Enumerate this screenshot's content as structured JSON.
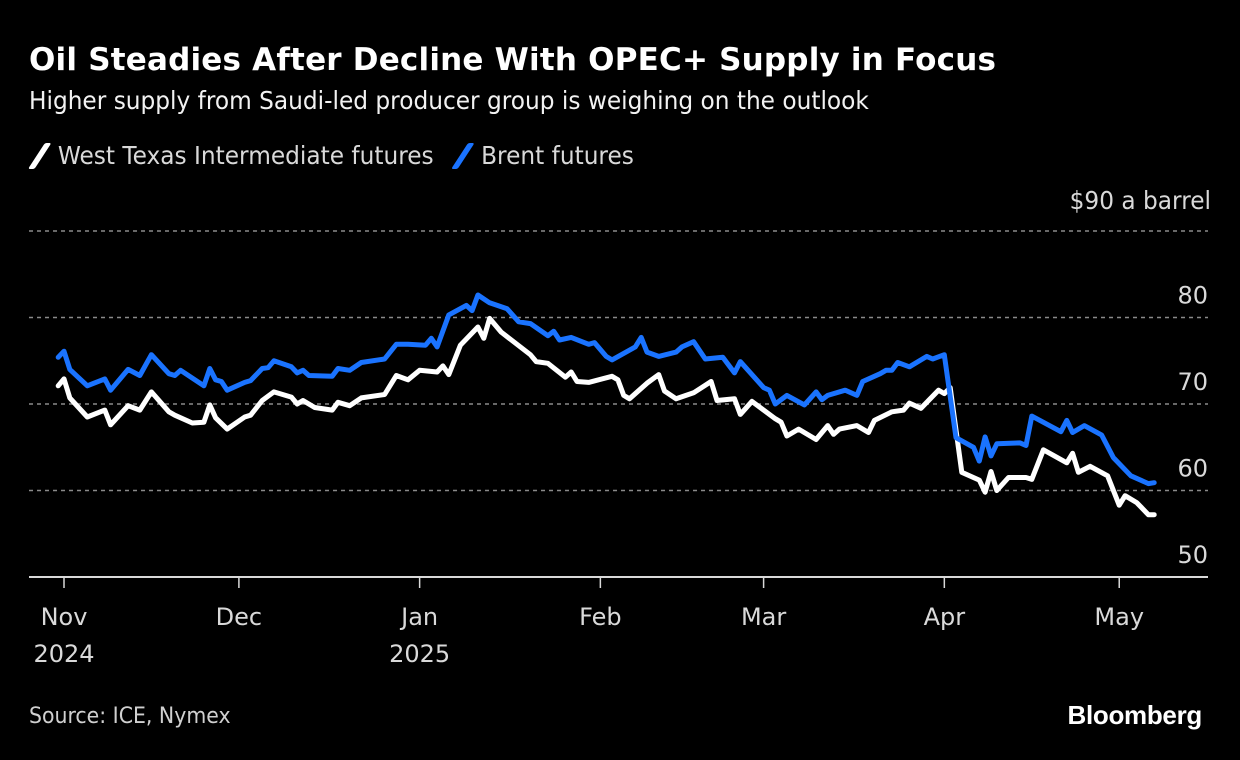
{
  "header": {
    "title": "Oil Steadies After Decline With OPEC+ Supply in Focus",
    "subtitle": "Higher supply from Saudi-led producer group is weighing on the outlook"
  },
  "legend": [
    {
      "label": "West Texas Intermediate futures",
      "color": "#ffffff"
    },
    {
      "label": "Brent futures",
      "color": "#1a73ff"
    }
  ],
  "footer": {
    "source": "Source: ICE, Nymex",
    "brand": "Bloomberg"
  },
  "chart_data": {
    "type": "line",
    "title": "Oil Steadies After Decline With OPEC+ Supply in Focus",
    "subtitle": "Higher supply from Saudi-led producer group is weighing on the outlook",
    "xlabel": "",
    "ylabel": "$ a barrel",
    "unit_label": "$90 a barrel",
    "ylim": [
      50,
      90
    ],
    "yticks": [
      50,
      60,
      70,
      80,
      90
    ],
    "ytick_labels": [
      "50",
      "60",
      "70",
      "80",
      "$90 a barrel"
    ],
    "xlim": [
      "2024-11-01",
      "2025-05-22"
    ],
    "xticks": [
      {
        "date": "2024-11-01",
        "label": "Nov",
        "sublabel": "2024"
      },
      {
        "date": "2024-12-01",
        "label": "Dec",
        "sublabel": ""
      },
      {
        "date": "2025-01-01",
        "label": "Jan",
        "sublabel": "2025"
      },
      {
        "date": "2025-02-01",
        "label": "Feb",
        "sublabel": ""
      },
      {
        "date": "2025-03-01",
        "label": "Mar",
        "sublabel": ""
      },
      {
        "date": "2025-04-01",
        "label": "Apr",
        "sublabel": ""
      },
      {
        "date": "2025-05-01",
        "label": "May",
        "sublabel": ""
      }
    ],
    "grid": "horizontal dotted",
    "legend_position": "top-left",
    "series": [
      {
        "name": "West Texas Intermediate futures",
        "color": "#ffffff",
        "points": [
          [
            "2024-10-31",
            72.1
          ],
          [
            "2024-11-01",
            72.9
          ],
          [
            "2024-11-02",
            70.7
          ],
          [
            "2024-11-05",
            68.5
          ],
          [
            "2024-11-08",
            69.3
          ],
          [
            "2024-11-09",
            67.6
          ],
          [
            "2024-11-12",
            69.8
          ],
          [
            "2024-11-14",
            69.3
          ],
          [
            "2024-11-16",
            71.4
          ],
          [
            "2024-11-19",
            69.1
          ],
          [
            "2024-11-20",
            68.7
          ],
          [
            "2024-11-23",
            67.8
          ],
          [
            "2024-11-25",
            67.9
          ],
          [
            "2024-11-26",
            69.9
          ],
          [
            "2024-11-27",
            68.4
          ],
          [
            "2024-11-29",
            67.1
          ],
          [
            "2024-12-02",
            68.5
          ],
          [
            "2024-12-03",
            68.7
          ],
          [
            "2024-12-05",
            70.4
          ],
          [
            "2024-12-07",
            71.4
          ],
          [
            "2024-12-10",
            70.8
          ],
          [
            "2024-12-11",
            70.0
          ],
          [
            "2024-12-12",
            70.4
          ],
          [
            "2024-12-14",
            69.6
          ],
          [
            "2024-12-17",
            69.3
          ],
          [
            "2024-12-18",
            70.2
          ],
          [
            "2024-12-20",
            69.8
          ],
          [
            "2024-12-22",
            70.7
          ],
          [
            "2024-12-26",
            71.1
          ],
          [
            "2024-12-28",
            73.3
          ],
          [
            "2024-12-30",
            72.8
          ],
          [
            "2025-01-01",
            73.9
          ],
          [
            "2025-01-04",
            73.7
          ],
          [
            "2025-01-05",
            74.4
          ],
          [
            "2025-01-06",
            73.4
          ],
          [
            "2025-01-08",
            76.8
          ],
          [
            "2025-01-11",
            78.9
          ],
          [
            "2025-01-12",
            77.6
          ],
          [
            "2025-01-13",
            79.9
          ],
          [
            "2025-01-15",
            78.3
          ],
          [
            "2025-01-20",
            75.7
          ],
          [
            "2025-01-21",
            74.9
          ],
          [
            "2025-01-23",
            74.7
          ],
          [
            "2025-01-26",
            73.1
          ],
          [
            "2025-01-27",
            73.7
          ],
          [
            "2025-01-28",
            72.6
          ],
          [
            "2025-01-30",
            72.5
          ],
          [
            "2025-02-03",
            73.2
          ],
          [
            "2025-02-04",
            72.8
          ],
          [
            "2025-02-05",
            71.0
          ],
          [
            "2025-02-06",
            70.6
          ],
          [
            "2025-02-09",
            72.4
          ],
          [
            "2025-02-11",
            73.4
          ],
          [
            "2025-02-12",
            71.5
          ],
          [
            "2025-02-14",
            70.6
          ],
          [
            "2025-02-17",
            71.3
          ],
          [
            "2025-02-20",
            72.6
          ],
          [
            "2025-02-21",
            70.4
          ],
          [
            "2025-02-24",
            70.6
          ],
          [
            "2025-02-25",
            68.8
          ],
          [
            "2025-02-27",
            70.3
          ],
          [
            "2025-03-03",
            68.3
          ],
          [
            "2025-03-04",
            67.9
          ],
          [
            "2025-03-05",
            66.3
          ],
          [
            "2025-03-07",
            67.1
          ],
          [
            "2025-03-10",
            65.9
          ],
          [
            "2025-03-12",
            67.5
          ],
          [
            "2025-03-13",
            66.5
          ],
          [
            "2025-03-14",
            67.1
          ],
          [
            "2025-03-17",
            67.5
          ],
          [
            "2025-03-19",
            66.7
          ],
          [
            "2025-03-20",
            68.1
          ],
          [
            "2025-03-23",
            69.1
          ],
          [
            "2025-03-25",
            69.3
          ],
          [
            "2025-03-26",
            70.1
          ],
          [
            "2025-03-28",
            69.5
          ],
          [
            "2025-03-31",
            71.6
          ],
          [
            "2025-04-01",
            71.2
          ],
          [
            "2025-04-02",
            71.9
          ],
          [
            "2025-04-04",
            62.1
          ],
          [
            "2025-04-07",
            61.2
          ],
          [
            "2025-04-08",
            59.8
          ],
          [
            "2025-04-09",
            62.2
          ],
          [
            "2025-04-10",
            60.0
          ],
          [
            "2025-04-12",
            61.5
          ],
          [
            "2025-04-15",
            61.5
          ],
          [
            "2025-04-16",
            61.3
          ],
          [
            "2025-04-18",
            64.7
          ],
          [
            "2025-04-22",
            63.2
          ],
          [
            "2025-04-23",
            64.3
          ],
          [
            "2025-04-24",
            62.1
          ],
          [
            "2025-04-26",
            62.8
          ],
          [
            "2025-04-29",
            61.7
          ],
          [
            "2025-05-01",
            58.3
          ],
          [
            "2025-05-02",
            59.4
          ],
          [
            "2025-05-04",
            58.6
          ],
          [
            "2025-05-06",
            57.2
          ],
          [
            "2025-05-07",
            57.2
          ]
        ]
      },
      {
        "name": "Brent futures",
        "color": "#1a73ff",
        "points": [
          [
            "2024-10-31",
            75.4
          ],
          [
            "2024-11-01",
            76.1
          ],
          [
            "2024-11-02",
            74.0
          ],
          [
            "2024-11-05",
            72.1
          ],
          [
            "2024-11-08",
            72.9
          ],
          [
            "2024-11-09",
            71.6
          ],
          [
            "2024-11-12",
            74.0
          ],
          [
            "2024-11-14",
            73.3
          ],
          [
            "2024-11-16",
            75.7
          ],
          [
            "2024-11-19",
            73.5
          ],
          [
            "2024-11-20",
            73.3
          ],
          [
            "2024-11-21",
            73.9
          ],
          [
            "2024-11-25",
            72.1
          ],
          [
            "2024-11-26",
            74.1
          ],
          [
            "2024-11-27",
            72.8
          ],
          [
            "2024-11-28",
            72.6
          ],
          [
            "2024-11-29",
            71.6
          ],
          [
            "2024-12-02",
            72.5
          ],
          [
            "2024-12-03",
            72.7
          ],
          [
            "2024-12-05",
            74.1
          ],
          [
            "2024-12-06",
            74.2
          ],
          [
            "2024-12-07",
            75.0
          ],
          [
            "2024-12-10",
            74.3
          ],
          [
            "2024-12-11",
            73.6
          ],
          [
            "2024-12-12",
            73.9
          ],
          [
            "2024-12-13",
            73.3
          ],
          [
            "2024-12-17",
            73.2
          ],
          [
            "2024-12-18",
            74.1
          ],
          [
            "2024-12-20",
            73.9
          ],
          [
            "2024-12-22",
            74.8
          ],
          [
            "2024-12-26",
            75.2
          ],
          [
            "2024-12-28",
            76.9
          ],
          [
            "2024-12-30",
            76.9
          ],
          [
            "2025-01-02",
            76.8
          ],
          [
            "2025-01-03",
            77.6
          ],
          [
            "2025-01-04",
            76.6
          ],
          [
            "2025-01-06",
            80.3
          ],
          [
            "2025-01-09",
            81.4
          ],
          [
            "2025-01-10",
            80.8
          ],
          [
            "2025-01-11",
            82.6
          ],
          [
            "2025-01-13",
            81.7
          ],
          [
            "2025-01-16",
            81.0
          ],
          [
            "2025-01-18",
            79.5
          ],
          [
            "2025-01-20",
            79.3
          ],
          [
            "2025-01-23",
            77.9
          ],
          [
            "2025-01-24",
            78.4
          ],
          [
            "2025-01-25",
            77.4
          ],
          [
            "2025-01-27",
            77.7
          ],
          [
            "2025-01-30",
            76.9
          ],
          [
            "2025-01-31",
            77.1
          ],
          [
            "2025-02-02",
            75.5
          ],
          [
            "2025-02-03",
            75.1
          ],
          [
            "2025-02-07",
            76.6
          ],
          [
            "2025-02-08",
            77.7
          ],
          [
            "2025-02-09",
            76.0
          ],
          [
            "2025-02-11",
            75.5
          ],
          [
            "2025-02-14",
            76.0
          ],
          [
            "2025-02-15",
            76.6
          ],
          [
            "2025-02-17",
            77.2
          ],
          [
            "2025-02-19",
            75.2
          ],
          [
            "2025-02-22",
            75.4
          ],
          [
            "2025-02-24",
            73.6
          ],
          [
            "2025-02-25",
            74.9
          ],
          [
            "2025-03-01",
            71.9
          ],
          [
            "2025-03-02",
            71.6
          ],
          [
            "2025-03-03",
            70.0
          ],
          [
            "2025-03-05",
            71.0
          ],
          [
            "2025-03-08",
            69.9
          ],
          [
            "2025-03-10",
            71.4
          ],
          [
            "2025-03-11",
            70.5
          ],
          [
            "2025-03-12",
            71.0
          ],
          [
            "2025-03-15",
            71.6
          ],
          [
            "2025-03-17",
            71.0
          ],
          [
            "2025-03-18",
            72.6
          ],
          [
            "2025-03-21",
            73.5
          ],
          [
            "2025-03-22",
            73.9
          ],
          [
            "2025-03-23",
            73.9
          ],
          [
            "2025-03-24",
            74.8
          ],
          [
            "2025-03-26",
            74.3
          ],
          [
            "2025-03-29",
            75.5
          ],
          [
            "2025-03-30",
            75.2
          ],
          [
            "2025-04-01",
            75.7
          ],
          [
            "2025-04-03",
            66.1
          ],
          [
            "2025-04-06",
            65.0
          ],
          [
            "2025-04-07",
            63.4
          ],
          [
            "2025-04-08",
            66.2
          ],
          [
            "2025-04-09",
            64.0
          ],
          [
            "2025-04-10",
            65.4
          ],
          [
            "2025-04-14",
            65.5
          ],
          [
            "2025-04-15",
            65.2
          ],
          [
            "2025-04-16",
            68.6
          ],
          [
            "2025-04-21",
            66.8
          ],
          [
            "2025-04-22",
            68.1
          ],
          [
            "2025-04-23",
            66.7
          ],
          [
            "2025-04-25",
            67.5
          ],
          [
            "2025-04-28",
            66.4
          ],
          [
            "2025-04-30",
            63.8
          ],
          [
            "2025-05-03",
            61.7
          ],
          [
            "2025-05-06",
            60.8
          ],
          [
            "2025-05-07",
            60.9
          ]
        ]
      }
    ]
  }
}
